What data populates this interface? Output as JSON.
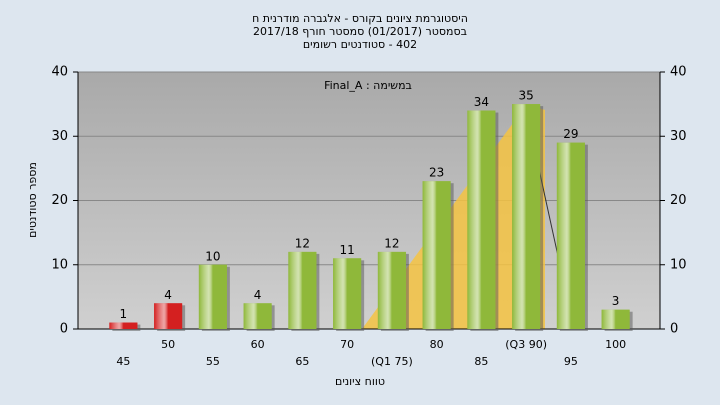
{
  "chart_data": {
    "type": "bar",
    "title_lines": [
      "היסטוגרמת ציונים בקורס - אלגברה מודרנית ח",
      "בסמסטר  (01/2017)  סמסטר חורף 2017/18",
      "402 - סטודנטים רשומים"
    ],
    "annotation": "במשימה : Final_A",
    "x_label": "טווח ציונים",
    "y_label": "מספר סטודנטים",
    "categories": [
      "45",
      "50",
      "55",
      "60",
      "65",
      "70",
      "(Q1 75)",
      "80",
      "85",
      "(Q3 90)",
      "95",
      "100"
    ],
    "values": [
      1,
      4,
      10,
      4,
      12,
      11,
      12,
      23,
      34,
      35,
      29,
      3
    ],
    "colors": [
      "#d42020",
      "#d42020",
      "#8fb83a",
      "#8fb83a",
      "#8fb83a",
      "#8fb83a",
      "#8fb83a",
      "#8fb83a",
      "#8fb83a",
      "#8fb83a",
      "#8fb83a",
      "#8fb83a"
    ],
    "ylim": [
      0,
      40
    ],
    "yticks": [
      0,
      10,
      20,
      30,
      40
    ],
    "grid": true
  }
}
